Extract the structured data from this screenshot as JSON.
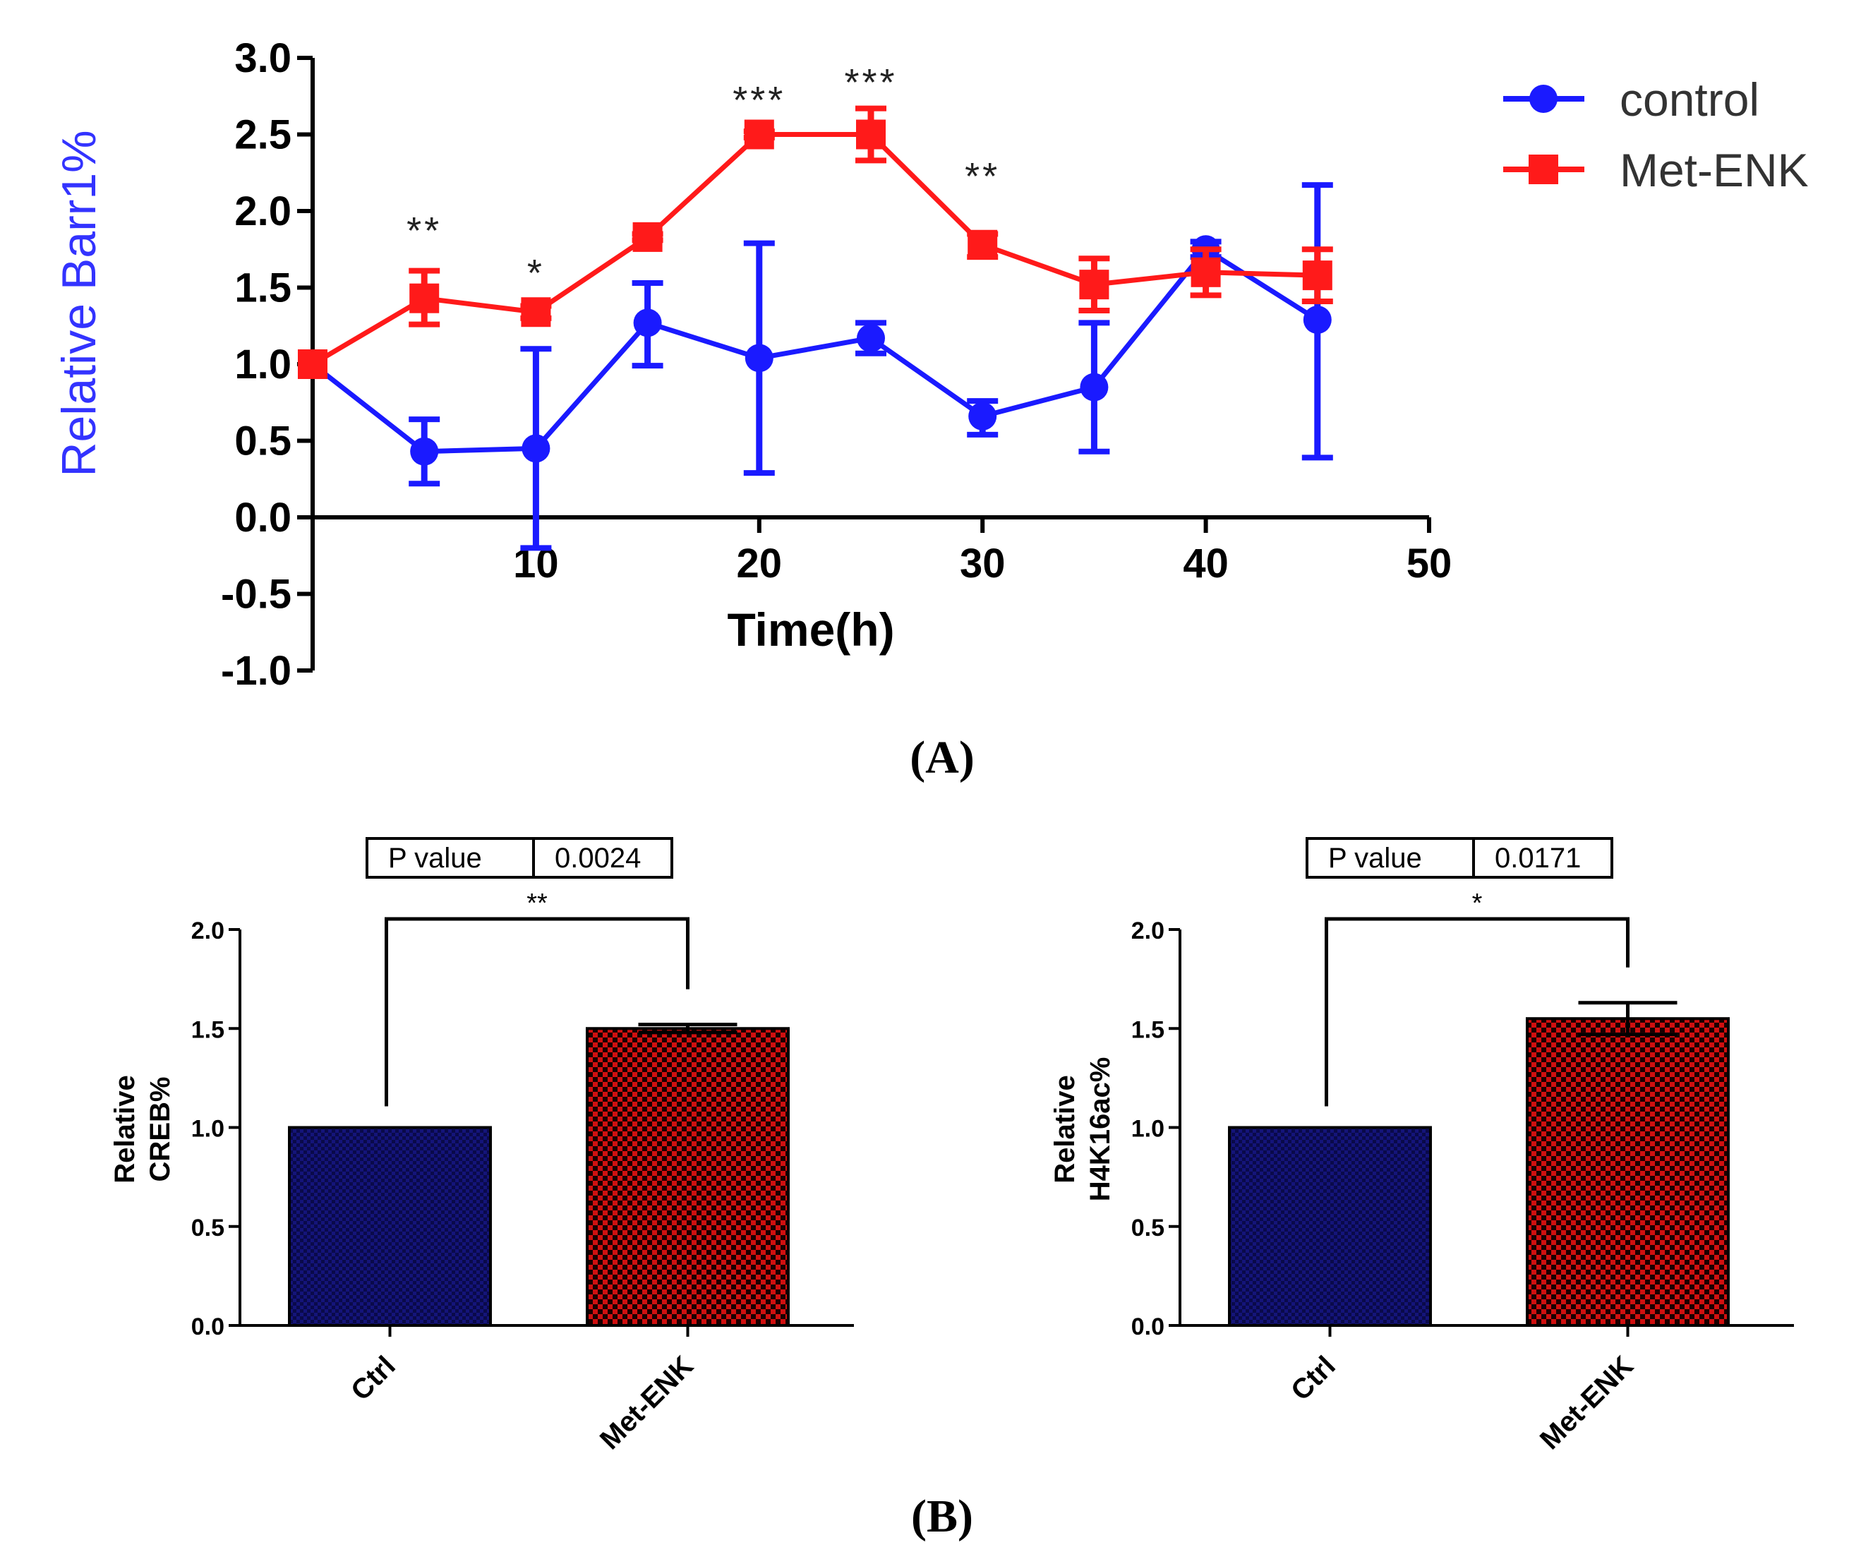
{
  "colors": {
    "control": "#1a1aff",
    "met_enk": "#ff1a1a",
    "ylabel_a": "#3333ff",
    "bar_ctrl": "#14147a",
    "bar_met": "#d01010",
    "axis": "#000000"
  },
  "panels": {
    "a_label": "(A)",
    "b_label": "(B)"
  },
  "chart_data": [
    {
      "type": "line",
      "xlabel": "Time(h)",
      "ylabel": "Relative Barr1%",
      "xlim": [
        0,
        50
      ],
      "ylim": [
        -1.0,
        3.0
      ],
      "xticks": [
        "10",
        "20",
        "30",
        "40",
        "50"
      ],
      "xtick_values": [
        10,
        20,
        30,
        40,
        50
      ],
      "yticks": [
        "3.0",
        "2.5",
        "2.0",
        "1.5",
        "1.0",
        "0.5",
        "0.0",
        "-0.5",
        "-1.0"
      ],
      "ytick_values": [
        3.0,
        2.5,
        2.0,
        1.5,
        1.0,
        0.5,
        0.0,
        -0.5,
        -1.0
      ],
      "legend_position": "top-right",
      "series": [
        {
          "name": "control",
          "marker": "circle",
          "x": [
            0,
            5,
            10,
            15,
            20,
            25,
            30,
            35,
            40,
            45
          ],
          "y": [
            1.0,
            0.43,
            0.45,
            1.27,
            1.04,
            1.17,
            0.66,
            0.85,
            1.75,
            1.29
          ],
          "err_low": [
            0.0,
            0.21,
            0.65,
            0.28,
            0.75,
            0.1,
            0.12,
            0.42,
            0.05,
            0.9
          ],
          "err_high": [
            0.0,
            0.21,
            0.65,
            0.26,
            0.75,
            0.1,
            0.1,
            0.42,
            0.05,
            0.88
          ]
        },
        {
          "name": "Met-ENK",
          "marker": "square",
          "x": [
            0,
            5,
            10,
            15,
            20,
            25,
            30,
            35,
            40,
            45
          ],
          "y": [
            1.0,
            1.43,
            1.34,
            1.83,
            2.5,
            2.5,
            1.78,
            1.52,
            1.6,
            1.58
          ],
          "err_low": [
            0.0,
            0.17,
            0.04,
            0.02,
            0.02,
            0.17,
            0.08,
            0.17,
            0.15,
            0.17
          ],
          "err_high": [
            0.0,
            0.18,
            0.04,
            0.02,
            0.02,
            0.17,
            0.07,
            0.17,
            0.15,
            0.17
          ]
        }
      ],
      "annotations": [
        {
          "x": 5,
          "text": "**"
        },
        {
          "x": 10,
          "text": "*"
        },
        {
          "x": 20,
          "text": "***"
        },
        {
          "x": 25,
          "text": "***"
        },
        {
          "x": 30,
          "text": "**"
        }
      ]
    },
    {
      "type": "bar",
      "categories": [
        "Ctrl",
        "Met-ENK"
      ],
      "values": [
        1.0,
        1.5
      ],
      "errors": [
        0.0,
        0.02
      ],
      "ylabel_line1": "Relative",
      "ylabel_line2": "CREB%",
      "ylim": [
        0.0,
        2.0
      ],
      "yticks": [
        "2.0",
        "1.5",
        "1.0",
        "0.5",
        "0.0"
      ],
      "ytick_values": [
        2.0,
        1.5,
        1.0,
        0.5,
        0.0
      ],
      "significance": "**",
      "pvalue_label": "P value",
      "pvalue": "0.0024"
    },
    {
      "type": "bar",
      "categories": [
        "Ctrl",
        "Met-ENK"
      ],
      "values": [
        1.0,
        1.55
      ],
      "errors": [
        0.0,
        0.08
      ],
      "ylabel_line1": "Relative",
      "ylabel_line2": "H4K16ac%",
      "ylim": [
        0.0,
        2.0
      ],
      "yticks": [
        "2.0",
        "1.5",
        "1.0",
        "0.5",
        "0.0"
      ],
      "ytick_values": [
        2.0,
        1.5,
        1.0,
        0.5,
        0.0
      ],
      "significance": "*",
      "pvalue_label": "P value",
      "pvalue": "0.0171"
    }
  ]
}
